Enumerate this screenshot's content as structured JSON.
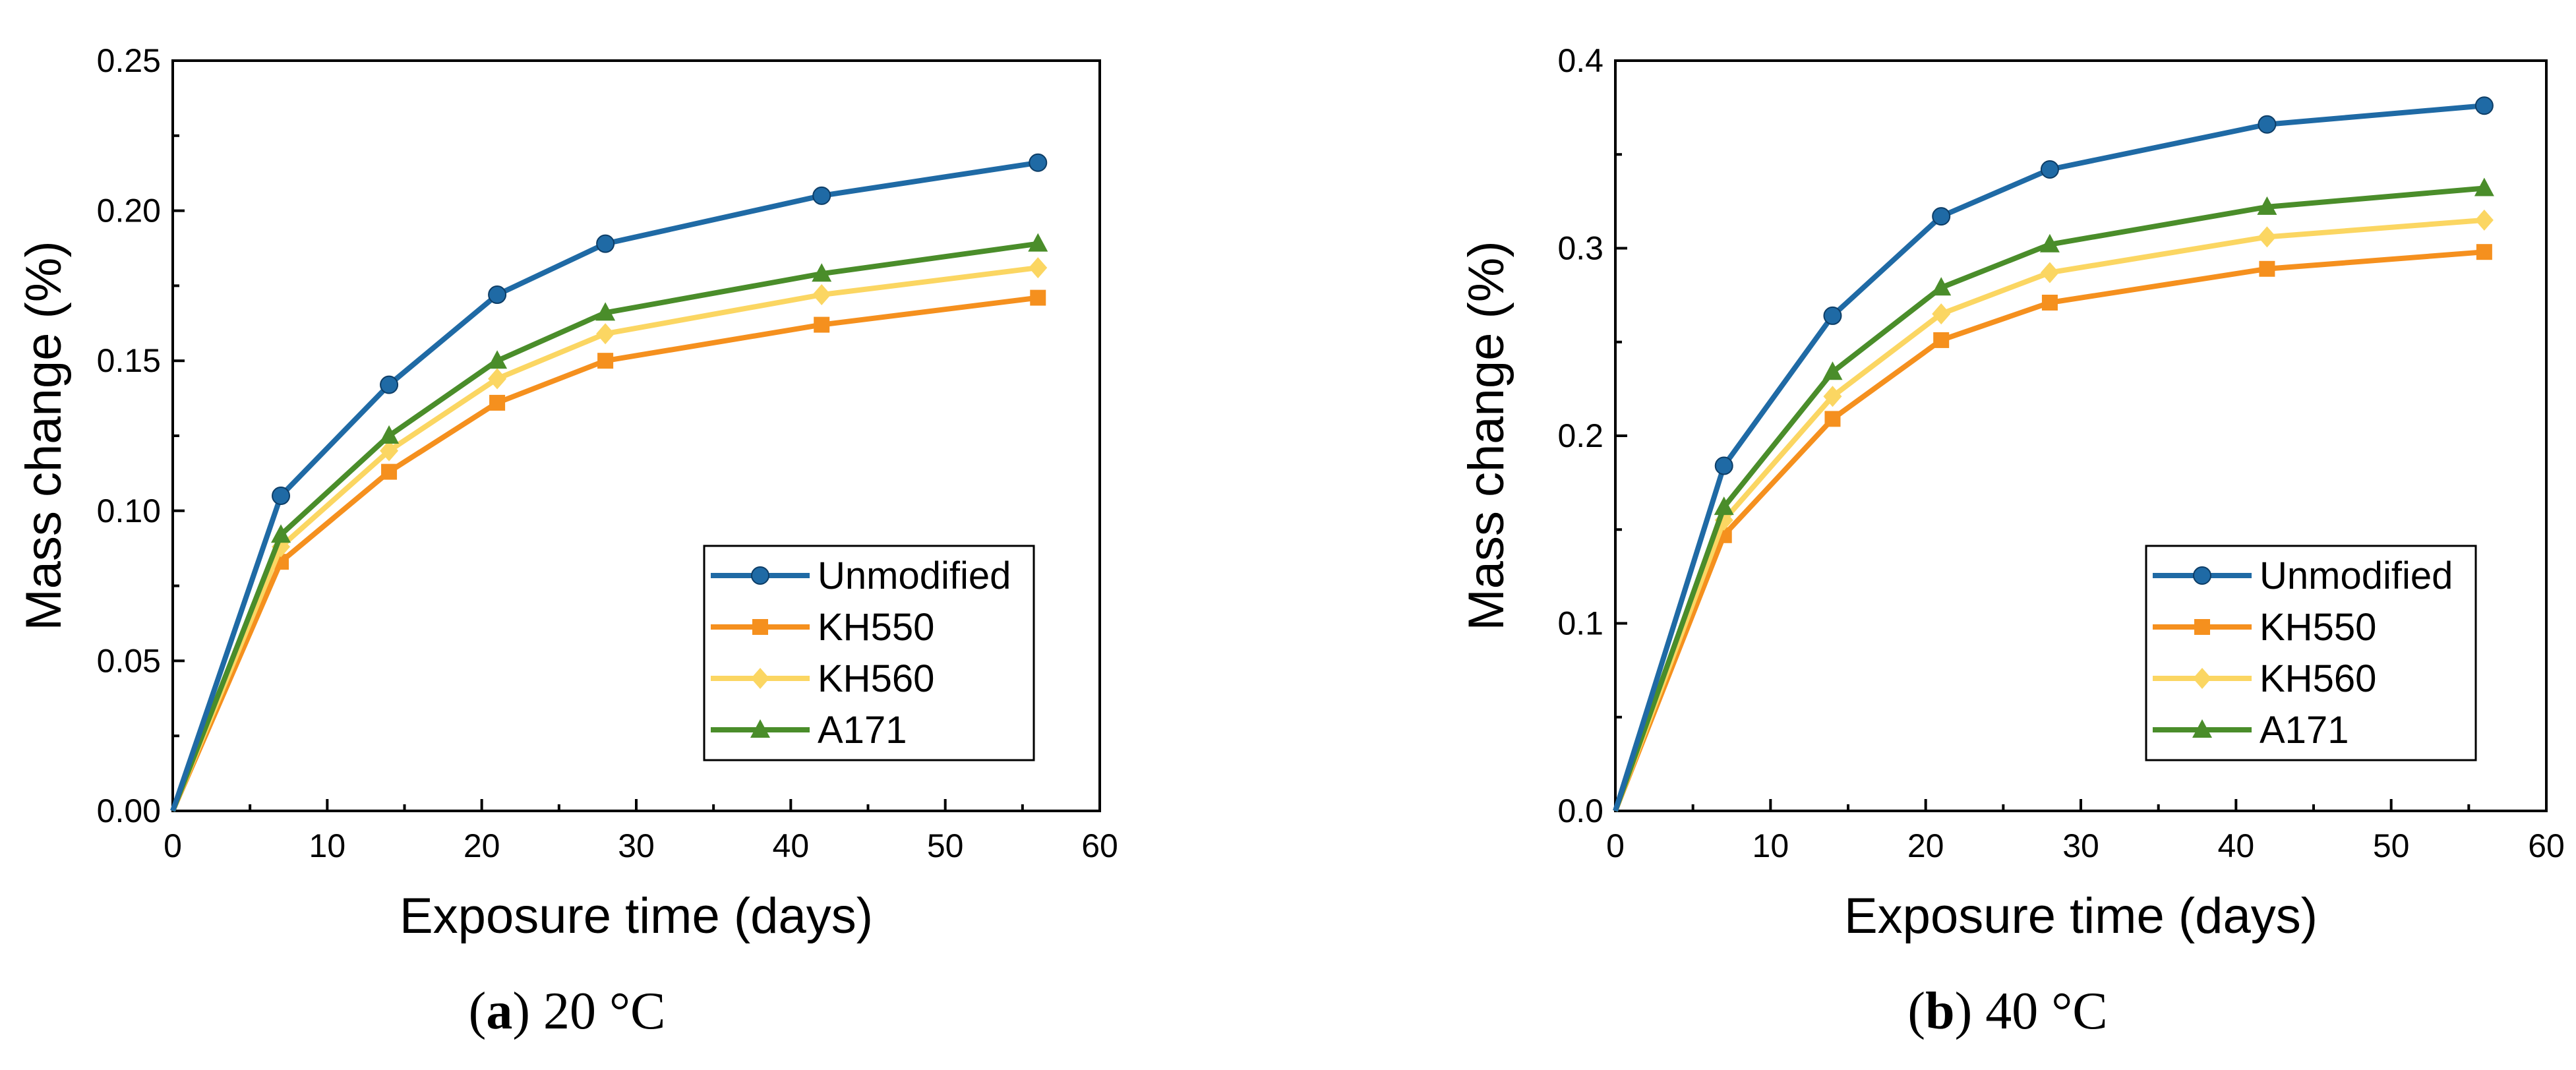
{
  "chart_data": [
    {
      "type": "line",
      "caption": {
        "letter": "a",
        "text": "20 °C"
      },
      "xlabel": "Exposure time (days)",
      "ylabel": "Mass change (%)",
      "xlim": [
        0,
        60
      ],
      "ylim": [
        0,
        0.25
      ],
      "xticks": [
        "0",
        "10",
        "20",
        "30",
        "40",
        "50",
        "60"
      ],
      "yticks": [
        "0.00",
        "0.05",
        "0.10",
        "0.15",
        "0.20",
        "0.25"
      ],
      "x": [
        0,
        7,
        14,
        21,
        28,
        42,
        56
      ],
      "legend_position": "lower-right",
      "series": [
        {
          "name": "Unmodified",
          "color": "#1f6aa5",
          "marker": "circle",
          "values": [
            0,
            0.105,
            0.142,
            0.172,
            0.189,
            0.205,
            0.216
          ]
        },
        {
          "name": "KH550",
          "color": "#f5901e",
          "marker": "square",
          "values": [
            0,
            0.083,
            0.113,
            0.136,
            0.15,
            0.162,
            0.171
          ]
        },
        {
          "name": "KH560",
          "color": "#fbd662",
          "marker": "diamond",
          "values": [
            0,
            0.088,
            0.12,
            0.144,
            0.159,
            0.172,
            0.181
          ]
        },
        {
          "name": "A171",
          "color": "#4a8d2a",
          "marker": "triangle",
          "values": [
            0,
            0.092,
            0.125,
            0.15,
            0.166,
            0.179,
            0.189
          ]
        }
      ]
    },
    {
      "type": "line",
      "caption": {
        "letter": "b",
        "text": "40 °C"
      },
      "xlabel": "Exposure time (days)",
      "ylabel": "Mass change (%)",
      "xlim": [
        0,
        60
      ],
      "ylim": [
        0,
        0.4
      ],
      "xticks": [
        "0",
        "10",
        "20",
        "30",
        "40",
        "50",
        "60"
      ],
      "yticks": [
        "0.0",
        "0.1",
        "0.2",
        "0.3",
        "0.4"
      ],
      "x": [
        0,
        7,
        14,
        21,
        28,
        42,
        56
      ],
      "legend_position": "lower-right",
      "series": [
        {
          "name": "Unmodified",
          "color": "#1f6aa5",
          "marker": "circle",
          "values": [
            0,
            0.184,
            0.264,
            0.317,
            0.342,
            0.366,
            0.376
          ]
        },
        {
          "name": "KH550",
          "color": "#f5901e",
          "marker": "square",
          "values": [
            0,
            0.147,
            0.209,
            0.251,
            0.271,
            0.289,
            0.298
          ]
        },
        {
          "name": "KH560",
          "color": "#fbd662",
          "marker": "diamond",
          "values": [
            0,
            0.155,
            0.221,
            0.265,
            0.287,
            0.306,
            0.315
          ]
        },
        {
          "name": "A171",
          "color": "#4a8d2a",
          "marker": "triangle",
          "values": [
            0,
            0.162,
            0.234,
            0.279,
            0.302,
            0.322,
            0.332
          ]
        }
      ]
    }
  ]
}
